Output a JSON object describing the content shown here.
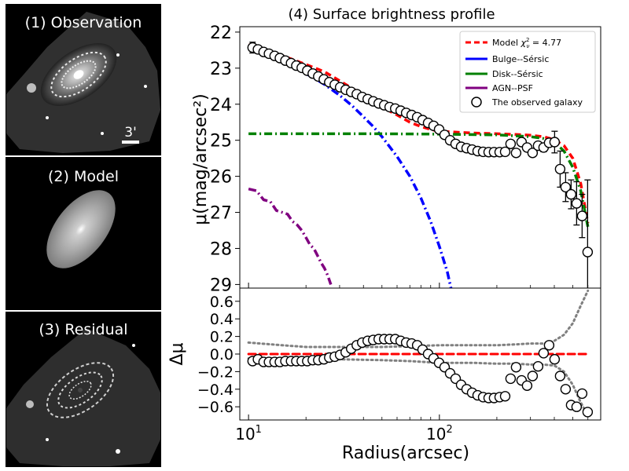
{
  "panels": {
    "observation": "(1) Observation",
    "model": "(2) Model",
    "residual": "(3) Residual",
    "scale_bar": "3'"
  },
  "chart_data": [
    {
      "type": "line",
      "title": "(4) Surface brightness profile",
      "xlabel": "Radius(arcsec)",
      "ylabel": "μ(mag/arcsec²)",
      "xscale": "log",
      "xlim": [
        9,
        700
      ],
      "ylim": [
        29.1,
        21.85
      ],
      "y_inverted": true,
      "yticks": [
        "22",
        "23",
        "24",
        "25",
        "26",
        "27",
        "28",
        "29"
      ],
      "legend": {
        "position": "top-right",
        "entries": [
          {
            "name": "Model",
            "label_main": "Model ",
            "label_chi": "χ",
            "label_sub": "ν",
            "label_sup": "2",
            "label_rest": " = 4.77",
            "style": "dashed",
            "color": "#ff0000"
          },
          {
            "name": "Bulge--Sérsic",
            "style": "dashdot",
            "color": "#0000ff"
          },
          {
            "name": "Disk--Sérsic",
            "style": "dashdot",
            "color": "#008000"
          },
          {
            "name": "AGN--PSF",
            "style": "dashdot",
            "color": "#800080"
          },
          {
            "name": "The observed galaxy",
            "style": "open-circle",
            "color": "#000000"
          }
        ]
      },
      "colors": {
        "model": "#ff0000",
        "bulge": "#0000ff",
        "disk": "#008000",
        "agn": "#800080",
        "observed": "#000000"
      },
      "series": [
        {
          "name": "Model",
          "x": [
            10,
            12,
            15,
            20,
            25,
            30,
            40,
            50,
            60,
            70,
            80,
            90,
            100,
            150,
            200,
            250,
            300,
            350,
            400,
            450,
            500,
            550,
            600
          ],
          "y": [
            22.35,
            22.48,
            22.65,
            22.9,
            23.1,
            23.35,
            23.75,
            24.08,
            24.3,
            24.5,
            24.62,
            24.7,
            24.75,
            24.8,
            24.82,
            24.84,
            24.86,
            24.9,
            24.98,
            25.15,
            25.5,
            26.2,
            27.3
          ]
        },
        {
          "name": "Bulge--Sérsic",
          "x": [
            10,
            12,
            15,
            20,
            25,
            30,
            35,
            40,
            45,
            50,
            60,
            70,
            80,
            90,
            100,
            110,
            115
          ],
          "y": [
            22.38,
            22.55,
            22.8,
            23.15,
            23.45,
            23.75,
            24.05,
            24.35,
            24.62,
            24.9,
            25.45,
            26.0,
            26.6,
            27.25,
            27.95,
            28.65,
            29.1
          ]
        },
        {
          "name": "Disk--Sérsic",
          "x": [
            10,
            20,
            50,
            100,
            200,
            300,
            350,
            400,
            450,
            500,
            550,
            600
          ],
          "y": [
            24.82,
            24.82,
            24.82,
            24.83,
            24.85,
            24.9,
            24.95,
            25.05,
            25.3,
            25.75,
            26.4,
            27.4
          ]
        },
        {
          "name": "AGN--PSF",
          "x": [
            10,
            11,
            12,
            13,
            14,
            15,
            16,
            17,
            18,
            19,
            20,
            21,
            22,
            23,
            24,
            25,
            26,
            27
          ],
          "y": [
            26.35,
            26.4,
            26.65,
            26.7,
            26.95,
            27.0,
            27.05,
            27.25,
            27.35,
            27.5,
            27.7,
            27.9,
            28.0,
            28.2,
            28.4,
            28.55,
            28.75,
            29.0
          ]
        },
        {
          "name": "The observed galaxy",
          "x": [
            10.5,
            11.2,
            12,
            12.8,
            13.7,
            14.6,
            15.6,
            16.7,
            17.8,
            19,
            20.3,
            21.7,
            23.2,
            24.8,
            26.5,
            28.3,
            30.2,
            32.3,
            34.5,
            36.9,
            39.4,
            42.1,
            45,
            48.1,
            51.4,
            54.9,
            58.7,
            62.7,
            67,
            71.6,
            76.5,
            81.7,
            87.3,
            93.3,
            99.7,
            106.5,
            113.8,
            121.6,
            130,
            138.9,
            148.4,
            158.6,
            169.5,
            181.1,
            193.5,
            206.8,
            221,
            236.1,
            252.3,
            269.6,
            288.1,
            307.9,
            329,
            351.6,
            375.7,
            401.5,
            429,
            458.5,
            489.9,
            523.5,
            559.4,
            597.8
          ],
          "y": [
            22.43,
            22.48,
            22.55,
            22.6,
            22.66,
            22.72,
            22.79,
            22.86,
            22.93,
            22.99,
            23.07,
            23.15,
            23.23,
            23.31,
            23.39,
            23.46,
            23.53,
            23.6,
            23.66,
            23.72,
            23.8,
            23.86,
            23.92,
            23.98,
            24.03,
            24.08,
            24.12,
            24.18,
            24.24,
            24.3,
            24.36,
            24.44,
            24.52,
            24.6,
            24.7,
            24.85,
            25.0,
            25.1,
            25.18,
            25.22,
            25.26,
            25.3,
            25.32,
            25.33,
            25.33,
            25.33,
            25.32,
            25.1,
            25.35,
            25.05,
            25.2,
            25.35,
            25.15,
            25.2,
            25.07,
            25.05,
            25.8,
            26.3,
            26.5,
            26.75,
            27.1,
            28.1
          ],
          "errors": {
            "x": [
              10.5,
              351.6,
              375.7,
              401.5,
              429,
              458.5,
              489.9,
              523.5,
              559.4,
              597.8
            ],
            "err": [
              0.15,
              0.12,
              0.1,
              0.3,
              0.5,
              0.4,
              0.4,
              0.6,
              0.6,
              2.0
            ]
          }
        }
      ]
    },
    {
      "type": "line",
      "ylabel": "Δμ",
      "xlabel": "Radius(arcsec)",
      "xscale": "log",
      "xlim": [
        9,
        700
      ],
      "ylim": [
        -0.75,
        0.75
      ],
      "yticks": [
        "0.6",
        "0.4",
        "0.2",
        "0.0",
        "−0.2",
        "−0.4",
        "−0.6"
      ],
      "xticks": {
        "10": "10",
        "100": "10"
      },
      "xtick_exponent": "1",
      "xtick_exponent2": "2",
      "series": [
        {
          "name": "zero",
          "style": "dashed",
          "color": "#ff0000",
          "x": [
            10,
            600
          ],
          "y": [
            0,
            0
          ]
        },
        {
          "name": "upper-bound",
          "style": "dotted",
          "color": "#808080",
          "x": [
            10,
            15,
            20,
            30,
            50,
            70,
            100,
            150,
            200,
            250,
            300,
            350,
            400,
            450,
            500,
            550,
            600
          ],
          "y": [
            0.13,
            0.1,
            0.08,
            0.08,
            0.08,
            0.09,
            0.1,
            0.1,
            0.1,
            0.11,
            0.12,
            0.12,
            0.15,
            0.22,
            0.35,
            0.55,
            0.72
          ]
        },
        {
          "name": "lower-bound",
          "style": "dotted",
          "color": "#808080",
          "x": [
            10,
            15,
            20,
            30,
            50,
            70,
            100,
            150,
            200,
            250,
            300,
            350,
            400,
            450,
            500,
            550,
            600
          ],
          "y": [
            -0.05,
            -0.05,
            -0.06,
            -0.06,
            -0.07,
            -0.08,
            -0.1,
            -0.1,
            -0.11,
            -0.11,
            -0.12,
            -0.12,
            -0.13,
            -0.2,
            -0.35,
            -0.55,
            -0.7
          ]
        },
        {
          "name": "residual-points",
          "style": "open-circle",
          "color": "#000000",
          "x": [
            10.5,
            11.2,
            12,
            12.8,
            13.7,
            14.6,
            15.6,
            16.7,
            17.8,
            19,
            20.3,
            21.7,
            23.2,
            24.8,
            26.5,
            28.3,
            30.2,
            32.3,
            34.5,
            36.9,
            39.4,
            42.1,
            45,
            48.1,
            51.4,
            54.9,
            58.7,
            62.7,
            67,
            71.6,
            76.5,
            81.7,
            87.3,
            93.3,
            99.7,
            106.5,
            113.8,
            121.6,
            130,
            138.9,
            148.4,
            158.6,
            169.5,
            181.1,
            193.5,
            206.8,
            221,
            236.1,
            252.3,
            269.6,
            288.1,
            307.9,
            329,
            351.6,
            375.7,
            401.5,
            429,
            458.5,
            489.9,
            523.5,
            559.4,
            597.8
          ],
          "y": [
            -0.08,
            -0.06,
            -0.09,
            -0.09,
            -0.09,
            -0.09,
            -0.08,
            -0.08,
            -0.08,
            -0.08,
            -0.08,
            -0.07,
            -0.07,
            -0.06,
            -0.04,
            -0.03,
            -0.01,
            0.02,
            0.06,
            0.1,
            0.13,
            0.15,
            0.16,
            0.17,
            0.17,
            0.17,
            0.17,
            0.15,
            0.13,
            0.12,
            0.1,
            0.05,
            0.0,
            -0.05,
            -0.1,
            -0.15,
            -0.22,
            -0.28,
            -0.35,
            -0.4,
            -0.44,
            -0.47,
            -0.49,
            -0.5,
            -0.5,
            -0.49,
            -0.48,
            -0.28,
            -0.15,
            -0.3,
            -0.36,
            -0.25,
            -0.14,
            0.01,
            0.1,
            -0.06,
            -0.25,
            -0.4,
            -0.58,
            -0.6,
            -0.45,
            -0.66
          ]
        }
      ]
    }
  ]
}
